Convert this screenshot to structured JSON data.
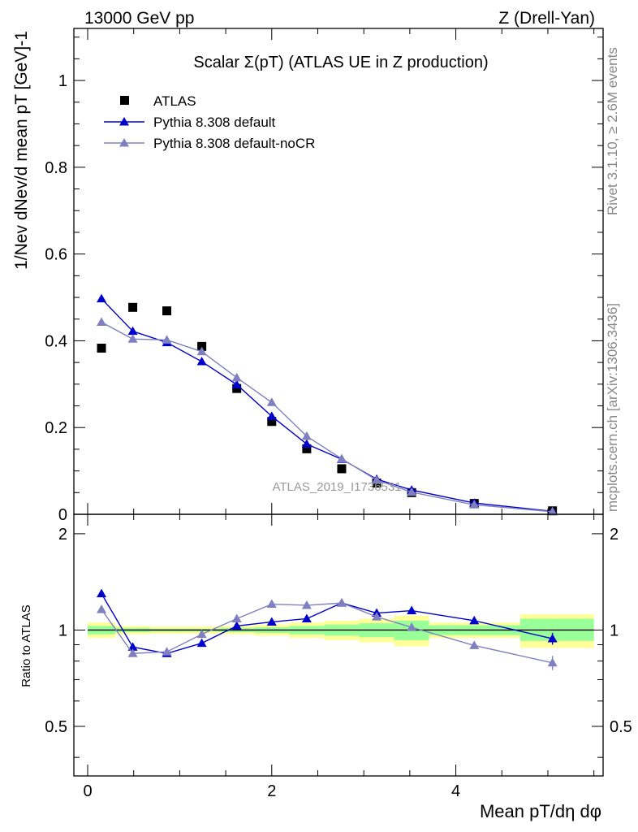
{
  "header": {
    "energy_label": "13000 GeV pp",
    "process_label": "Z (Drell-Yan)"
  },
  "side_labels": {
    "rivet": "Rivet 3.1.10, ≥ 2.6M events",
    "mcplots": "mcplots.cern.ch [arXiv:1306.3436]"
  },
  "chart_data": [
    {
      "type": "line",
      "panel": "main",
      "title": "Scalar Σ(pT) (ATLAS UE in Z production)",
      "ylabel": "1/Nev dNev/d mean pT [GeV]-1",
      "xlabel": "Mean pT/dη dφ",
      "watermark": "ATLAS_2019_I1736531",
      "xlim": [
        -0.15,
        5.6
      ],
      "ylim": [
        0,
        1.12
      ],
      "x_ticks": [
        "0",
        "2",
        "4"
      ],
      "y_ticks": [
        "0",
        "0.2",
        "0.4",
        "0.6",
        "0.8",
        "1"
      ],
      "legend_position": "top-left",
      "x": [
        0.15,
        0.49,
        0.86,
        1.24,
        1.62,
        2.0,
        2.38,
        2.76,
        3.14,
        3.52,
        4.2,
        5.05
      ],
      "series": [
        {
          "name": "ATLAS",
          "marker": "square",
          "color": "#000000",
          "values": [
            0.383,
            0.477,
            0.469,
            0.387,
            0.29,
            0.214,
            0.151,
            0.105,
            0.072,
            0.05,
            0.025,
            0.008
          ]
        },
        {
          "name": "Pythia 8.308 default",
          "marker": "triangle",
          "color": "#0000cc",
          "values": [
            0.497,
            0.422,
            0.396,
            0.352,
            0.299,
            0.226,
            0.162,
            0.127,
            0.081,
            0.056,
            0.026,
            0.007
          ]
        },
        {
          "name": "Pythia 8.308 default-noCR",
          "marker": "triangle",
          "color": "#8080c0",
          "values": [
            0.443,
            0.404,
            0.402,
            0.375,
            0.315,
            0.258,
            0.18,
            0.128,
            0.079,
            0.051,
            0.022,
            0.006
          ]
        }
      ]
    },
    {
      "type": "line",
      "panel": "ratio",
      "ylabel": "Ratio to ATLAS",
      "xlabel": "Mean pT/dη dφ",
      "xlim": [
        -0.15,
        5.6
      ],
      "ylim": [
        0.35,
        2.3
      ],
      "x_ticks": [
        "0",
        "2",
        "4"
      ],
      "y_ticks": [
        "0.5",
        "1",
        "2"
      ],
      "bands": {
        "edges": [
          0,
          0.3,
          0.68,
          1.05,
          1.43,
          1.81,
          2.19,
          2.57,
          2.95,
          3.33,
          3.71,
          4.7,
          5.5
        ],
        "green": [
          [
            0.97,
            1.03
          ],
          [
            0.985,
            1.015
          ],
          [
            0.99,
            1.01
          ],
          [
            0.99,
            1.01
          ],
          [
            0.985,
            1.015
          ],
          [
            0.98,
            1.02
          ],
          [
            0.97,
            1.03
          ],
          [
            0.96,
            1.04
          ],
          [
            0.95,
            1.05
          ],
          [
            0.93,
            1.07
          ],
          [
            0.965,
            1.035
          ],
          [
            0.925,
            1.085
          ]
        ],
        "yellow": [
          [
            0.945,
            1.055
          ],
          [
            0.97,
            1.03
          ],
          [
            0.975,
            1.025
          ],
          [
            0.975,
            1.025
          ],
          [
            0.97,
            1.03
          ],
          [
            0.96,
            1.04
          ],
          [
            0.945,
            1.055
          ],
          [
            0.93,
            1.07
          ],
          [
            0.915,
            1.085
          ],
          [
            0.89,
            1.11
          ],
          [
            0.945,
            1.055
          ],
          [
            0.88,
            1.12
          ]
        ]
      },
      "series": [
        {
          "name": "Pythia 8.308 default",
          "color": "#0000cc",
          "values": [
            1.3,
            0.885,
            0.845,
            0.91,
            1.03,
            1.06,
            1.085,
            1.215,
            1.13,
            1.15,
            1.07,
            0.94
          ],
          "errors": [
            0,
            0,
            0,
            0,
            0,
            0,
            0,
            0,
            0.03,
            0.03,
            0.025,
            0.04
          ]
        },
        {
          "name": "Pythia 8.308 default-noCR",
          "color": "#8080c0",
          "values": [
            1.16,
            0.845,
            0.855,
            0.97,
            1.085,
            1.205,
            1.195,
            1.215,
            1.1,
            1.02,
            0.895,
            0.79
          ],
          "errors": [
            0,
            0,
            0,
            0,
            0,
            0,
            0,
            0,
            0.025,
            0.02,
            0.02,
            0.04
          ]
        }
      ]
    }
  ]
}
